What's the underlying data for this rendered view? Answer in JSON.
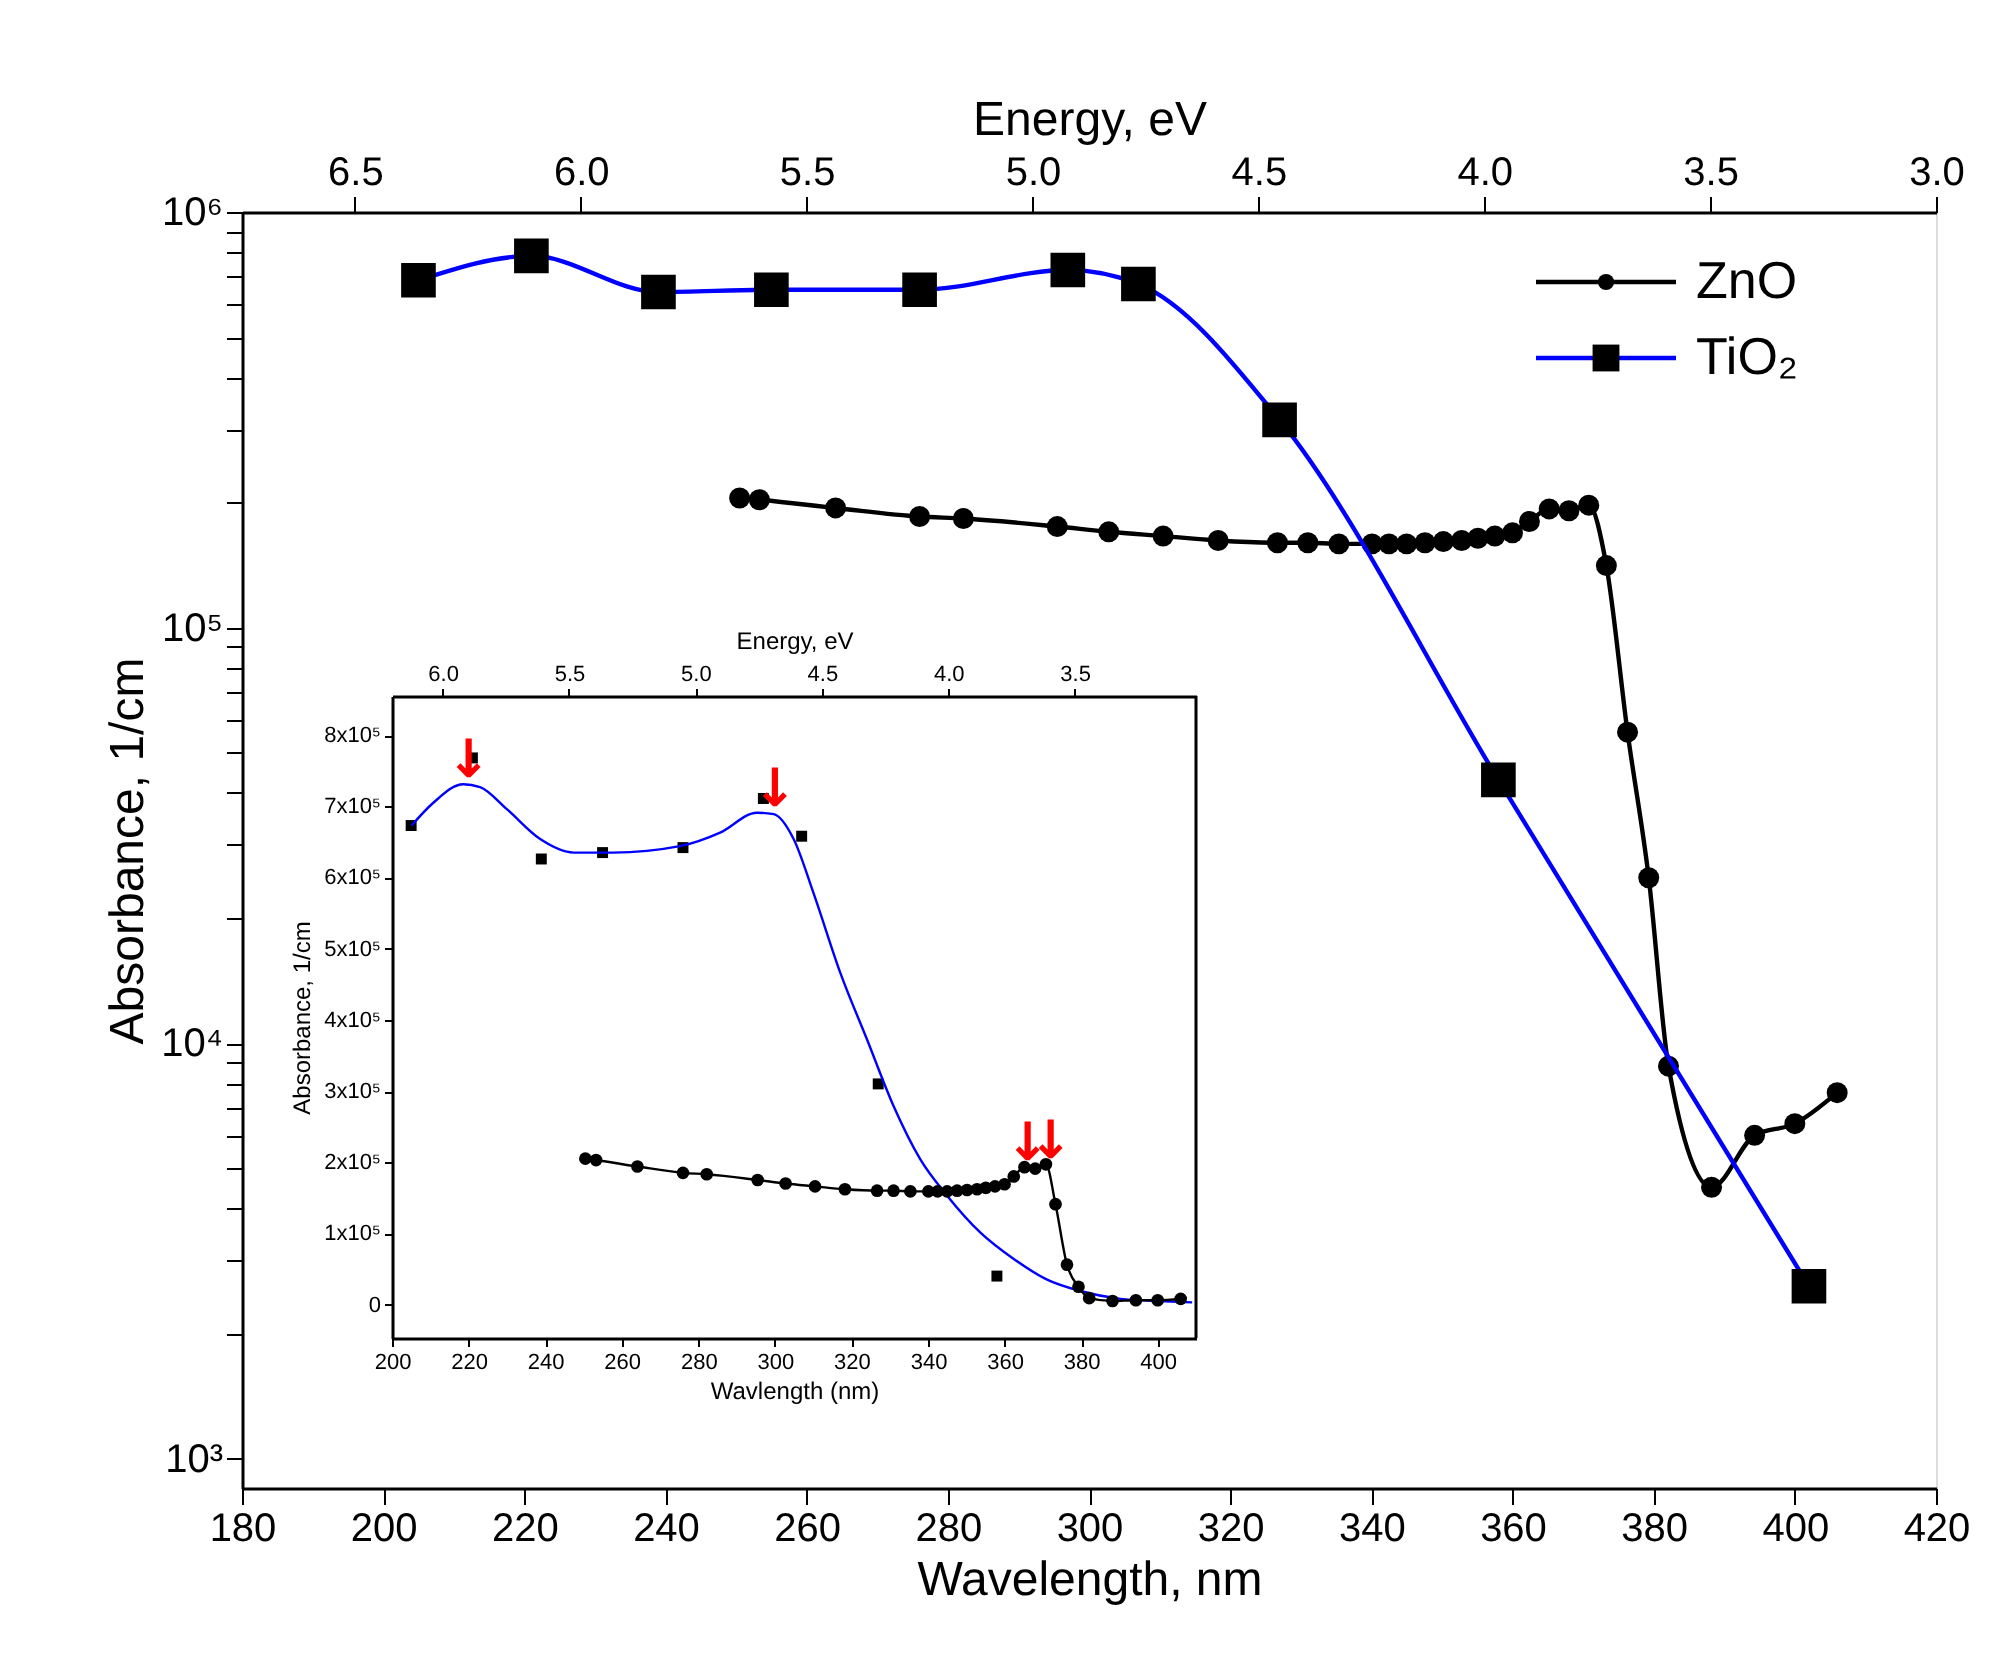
{
  "chart_data": [
    {
      "type": "line",
      "xlabel": "Wavelength, nm",
      "ylabel": "Absorbance, 1/cm",
      "x2label": "Energy, eV",
      "log": "y",
      "legend": "top right",
      "xlim": [
        180,
        420
      ],
      "xticks": [
        180,
        200,
        220,
        240,
        260,
        280,
        300,
        320,
        340,
        360,
        380,
        400,
        420
      ],
      "x2lim": [
        6.75,
        3.0
      ],
      "x2ticks": [
        6.5,
        {
          "value": 6,
          "label": "6.0"
        },
        5.5,
        {
          "value": 5,
          "label": "5.0"
        },
        4.5,
        {
          "value": 4,
          "label": "4.0"
        },
        3.5,
        {
          "value": 3,
          "label": "3.0"
        }
      ],
      "ylim": [
        850,
        1000000
      ],
      "yticks": [
        {
          "value": 1000,
          "label": "10³"
        },
        {
          "value": 2000,
          "label": null
        },
        {
          "value": 3000,
          "label": null
        },
        {
          "value": 4000,
          "label": null
        },
        {
          "value": 5000,
          "label": null
        },
        {
          "value": 6000,
          "label": null
        },
        {
          "value": 7000,
          "label": null
        },
        {
          "value": 8000,
          "label": null
        },
        {
          "value": 9000,
          "label": null
        },
        {
          "value": 10000,
          "label": "10⁴"
        },
        {
          "value": 20000,
          "label": null
        },
        {
          "value": 30000,
          "label": null
        },
        {
          "value": 40000,
          "label": null
        },
        {
          "value": 50000,
          "label": null
        },
        {
          "value": 60000,
          "label": null
        },
        {
          "value": 70000,
          "label": null
        },
        {
          "value": 80000,
          "label": null
        },
        {
          "value": 90000,
          "label": null
        },
        {
          "value": 100000,
          "label": "10⁵"
        },
        {
          "value": 200000,
          "label": null
        },
        {
          "value": 300000,
          "label": null
        },
        {
          "value": 400000,
          "label": null
        },
        {
          "value": 500000,
          "label": null
        },
        {
          "value": 600000,
          "label": null
        },
        {
          "value": 700000,
          "label": null
        },
        {
          "value": 800000,
          "label": null
        },
        {
          "value": 900000,
          "label": null
        },
        {
          "value": 1000000,
          "label": "10⁶"
        }
      ],
      "series": [
        {
          "name": "ZnO",
          "color": "#000000",
          "marker": "circle",
          "x": [
            250.5,
            253.3,
            264.1,
            276.0,
            282.2,
            295.5,
            302.8,
            310.5,
            318.3,
            326.7,
            331.0,
            335.4,
            340.1,
            342.5,
            345.0,
            347.6,
            350.2,
            352.8,
            355.1,
            357.5,
            360.0,
            362.4,
            365.2,
            368.0,
            370.8,
            373.3,
            376.3,
            379.3,
            382.1,
            388.2,
            394.3,
            400.0,
            406.0
          ],
          "values": [
            205000,
            203000,
            194000,
            185000,
            183000,
            175000,
            170000,
            166000,
            162000,
            160000,
            160000,
            159000,
            159000,
            159000,
            159000,
            160000,
            161000,
            162000,
            164000,
            166000,
            169000,
            180000,
            193000,
            191000,
            197000,
            141000,
            56000,
            25000,
            8800,
            4500,
            6000,
            6400,
            7600
          ]
        },
        {
          "name": "TiO₂",
          "color": "#0000ff",
          "marker": "square",
          "colors": [
            "#000000",
            "#000000",
            "#000000",
            "#000000",
            "#000000",
            "#000000",
            "#000000",
            "#000000",
            "#000000",
            "#000000"
          ],
          "x": [
            205,
            221,
            239,
            255,
            276,
            297,
            307,
            327,
            358,
            402
          ],
          "values": [
            685000,
            784000,
            642000,
            650000,
            650000,
            725000,
            671000,
            316000,
            43000,
            2600
          ]
        }
      ]
    },
    {
      "type": "line",
      "xlabel": "Wavlength (nm)",
      "ylabel": "Absorbance, 1/cm",
      "x2label": "Energy, eV",
      "xlim": [
        200,
        410
      ],
      "xticks": [
        200,
        220,
        240,
        260,
        280,
        300,
        320,
        340,
        360,
        380,
        400
      ],
      "x2lim": [
        6.2,
        3.02
      ],
      "x2ticks": [
        {
          "value": 6,
          "label": "6.0"
        },
        5.5,
        {
          "value": 5,
          "label": "5.0"
        },
        4.5,
        {
          "value": 4,
          "label": "4.0"
        },
        3.5
      ],
      "ylim": [
        -47000,
        855000
      ],
      "yticks": [
        0,
        {
          "value": 100000,
          "label": "1x10⁵"
        },
        {
          "value": 200000,
          "label": "2x10⁵"
        },
        {
          "value": 300000,
          "label": "3x10⁵"
        },
        {
          "value": 400000,
          "label": "4x10⁵"
        },
        {
          "value": 500000,
          "label": "5x10⁵"
        },
        {
          "value": 600000,
          "label": "6x10⁵"
        },
        {
          "value": 700000,
          "label": "7x10⁵"
        },
        {
          "value": 800000,
          "label": "8x10⁵"
        }
      ],
      "annotations": [
        {
          "text": "↓",
          "x": 220,
          "y": 735000
        },
        {
          "text": "↓",
          "x": 300,
          "y": 695000
        },
        {
          "text": "↓",
          "x": 366,
          "y": 198000
        },
        {
          "text": "↓",
          "x": 372,
          "y": 200000
        }
      ],
      "series": [
        {
          "type": "scatter",
          "color": "#000000",
          "marker": "square",
          "x": [
            205,
            221,
            239,
            255,
            276,
            297,
            307,
            327,
            358
          ],
          "values": [
            673000,
            768000,
            626000,
            635000,
            642000,
            711000,
            658000,
            310000,
            40000
          ]
        },
        {
          "type": "line",
          "color": "#0000ff",
          "x": [
            205.1,
            210.8,
            218.6,
            223.0,
            230.0,
            238.7,
            247.4,
            257.8,
            275.2,
            285.7,
            295.3,
            299.7,
            304.9,
            310.1,
            317.1,
            324.1,
            331.0,
            338.0,
            345.0,
            353.7,
            362.4,
            371.1,
            379.8,
            390.3,
            400.0,
            409.0
          ],
          "values": [
            673000,
            705000,
            731000,
            727000,
            696000,
            654000,
            635000,
            635000,
            644000,
            663000,
            691000,
            689000,
            654000,
            578000,
            466000,
            372000,
            279000,
            204000,
            153000,
            101000,
            64000,
            35000,
            19000,
            8000,
            5000,
            3000
          ]
        },
        {
          "type": "line",
          "color": "#000000",
          "marker": "circle",
          "x": [
            250.5,
            253.3,
            264.1,
            276.0,
            282.2,
            295.5,
            302.8,
            310.5,
            318.3,
            326.7,
            331.0,
            335.4,
            340.1,
            342.5,
            345.0,
            347.6,
            350.2,
            352.8,
            355.1,
            357.5,
            360.0,
            362.4,
            365.2,
            368.0,
            370.8,
            373.3,
            376.3,
            379.3,
            382.1,
            388.2,
            394.3,
            400.0,
            406.0
          ],
          "values": [
            205000,
            203000,
            194000,
            185000,
            183000,
            175000,
            170000,
            166000,
            162000,
            160000,
            160000,
            159000,
            159000,
            159000,
            159000,
            160000,
            161000,
            162000,
            164000,
            166000,
            169000,
            180000,
            193000,
            191000,
            197000,
            141000,
            56000,
            25000,
            9000,
            5000,
            6000,
            6000,
            8000
          ]
        }
      ]
    }
  ]
}
